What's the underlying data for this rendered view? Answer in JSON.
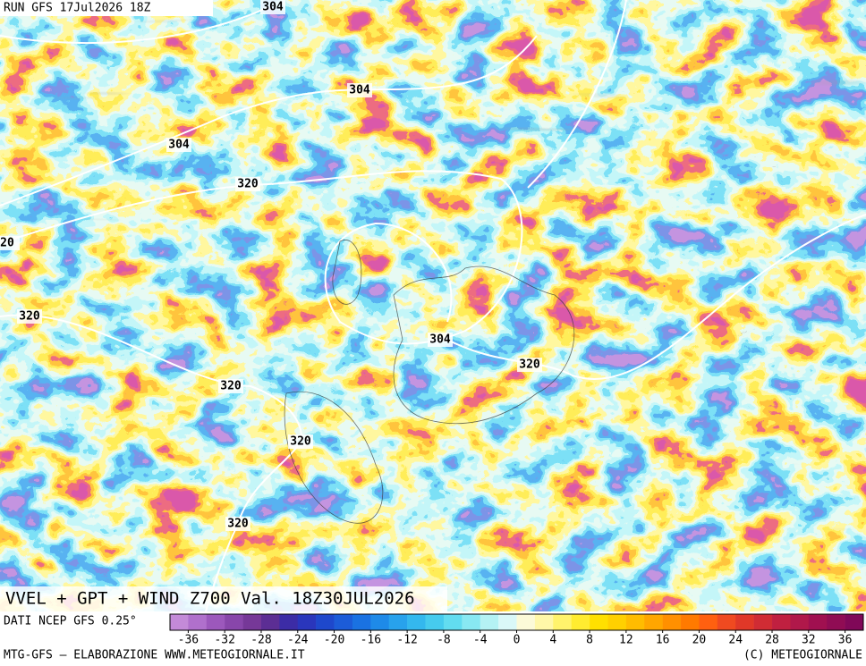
{
  "header": {
    "run": "RUN GFS 17Jul2026 18Z",
    "product": "VVEL + GPT + WIND Z700 Val. 18Z30JUL2026"
  },
  "map": {
    "contour_labels": [
      "304",
      "304",
      "304",
      "320",
      "20",
      "320",
      "320",
      "304",
      "320",
      "320",
      "320"
    ]
  },
  "colorbar": {
    "range": [
      -38,
      38
    ],
    "ticks": [
      -36,
      -32,
      -28,
      -24,
      -20,
      -16,
      -12,
      -8,
      -4,
      0,
      4,
      8,
      12,
      16,
      20,
      24,
      28,
      32,
      36
    ],
    "colors": [
      "#c48ad8",
      "#b070cc",
      "#9c58bc",
      "#8846aa",
      "#763898",
      "#5c2e94",
      "#3c2ca6",
      "#2a36bc",
      "#1e48cc",
      "#1c5cd8",
      "#1a72e2",
      "#1e8ae8",
      "#28a2ec",
      "#34b8ee",
      "#46cbee",
      "#62dcf0",
      "#88e8f2",
      "#b4f2f4",
      "#daf8f8",
      "#fcfad8",
      "#fff7a8",
      "#fff36c",
      "#ffec30",
      "#ffe000",
      "#ffd000",
      "#ffbc00",
      "#ffa600",
      "#ff9000",
      "#ff7a00",
      "#ff6010",
      "#f04a20",
      "#e03828",
      "#d02c34",
      "#c02040",
      "#b0184a",
      "#a01050",
      "#900c54",
      "#800858"
    ]
  },
  "footer": {
    "source": "DATI NCEP GFS 0.25°",
    "credit": "MTG-GFS — ELABORAZIONE WWW.METEOGIORNALE.IT",
    "copyright": "(C) METEOGIORNALE"
  }
}
